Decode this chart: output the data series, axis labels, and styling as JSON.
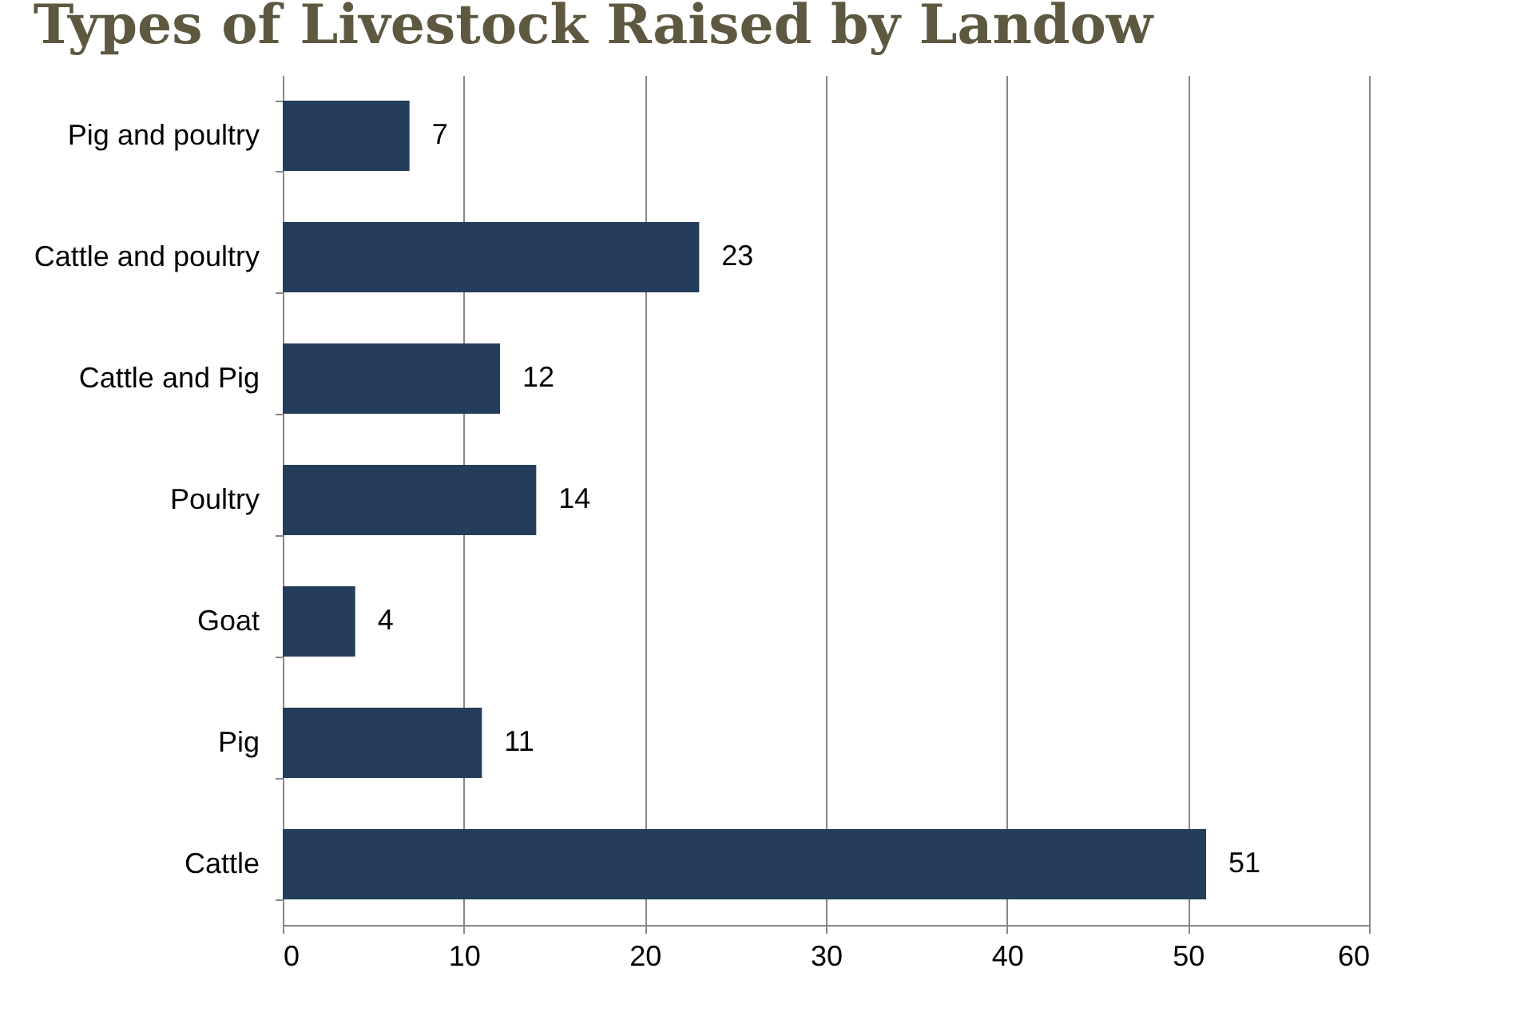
{
  "chart_data": {
    "type": "bar",
    "orientation": "horizontal",
    "title": "Types of Livestock Raised by Landow",
    "categories": [
      "Pig and poultry",
      "Cattle and poultry",
      "Cattle and Pig",
      "Poultry",
      "Goat",
      "Pig ",
      "Cattle"
    ],
    "values": [
      7,
      23,
      12,
      14,
      4,
      11,
      51
    ],
    "color": "#253d5c",
    "xlim": [
      0,
      60
    ],
    "xticks": [
      0,
      10,
      20,
      30,
      40,
      50,
      60
    ],
    "grid": "x",
    "data_labels": true
  }
}
